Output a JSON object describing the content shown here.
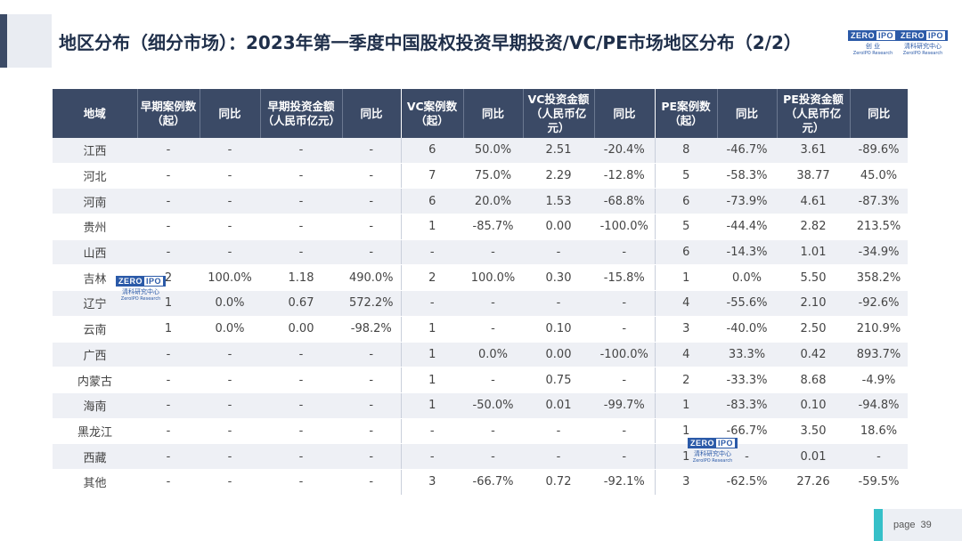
{
  "title": "地区分布（细分市场）：2023年第一季度中国股权投资早期投资/VC/PE市场地区分布（2/2）",
  "logo": {
    "box_main": "ZERO",
    "box_tail": "IPO",
    "sub": "清科研究中心",
    "sub_en": "ZeroIPO Research",
    "sub_b": "创 业"
  },
  "table": {
    "headers": [
      "地域",
      "早期案例数（起）",
      "同比",
      "早期投资金额（人民币亿元）",
      "同比",
      "VC案例数（起）",
      "同比",
      "VC投资金额（人民币亿元）",
      "同比",
      "PE案例数（起）",
      "同比",
      "PE投资金额（人民币亿元）",
      "同比"
    ],
    "rows": [
      [
        "江西",
        "-",
        "-",
        "-",
        "-",
        "6",
        "50.0%",
        "2.51",
        "-20.4%",
        "8",
        "-46.7%",
        "3.61",
        "-89.6%"
      ],
      [
        "河北",
        "-",
        "-",
        "-",
        "-",
        "7",
        "75.0%",
        "2.29",
        "-12.8%",
        "5",
        "-58.3%",
        "38.77",
        "45.0%"
      ],
      [
        "河南",
        "-",
        "-",
        "-",
        "-",
        "6",
        "20.0%",
        "1.53",
        "-68.8%",
        "6",
        "-73.9%",
        "4.61",
        "-87.3%"
      ],
      [
        "贵州",
        "-",
        "-",
        "-",
        "-",
        "1",
        "-85.7%",
        "0.00",
        "-100.0%",
        "5",
        "-44.4%",
        "2.82",
        "213.5%"
      ],
      [
        "山西",
        "-",
        "-",
        "-",
        "-",
        "-",
        "-",
        "-",
        "-",
        "6",
        "-14.3%",
        "1.01",
        "-34.9%"
      ],
      [
        "吉林",
        "2",
        "100.0%",
        "1.18",
        "490.0%",
        "2",
        "100.0%",
        "0.30",
        "-15.8%",
        "1",
        "0.0%",
        "5.50",
        "358.2%"
      ],
      [
        "辽宁",
        "1",
        "0.0%",
        "0.67",
        "572.2%",
        "-",
        "-",
        "-",
        "-",
        "4",
        "-55.6%",
        "2.10",
        "-92.6%"
      ],
      [
        "云南",
        "1",
        "0.0%",
        "0.00",
        "-98.2%",
        "1",
        "-",
        "0.10",
        "-",
        "3",
        "-40.0%",
        "2.50",
        "210.9%"
      ],
      [
        "广西",
        "-",
        "-",
        "-",
        "-",
        "1",
        "0.0%",
        "0.00",
        "-100.0%",
        "4",
        "33.3%",
        "0.42",
        "893.7%"
      ],
      [
        "内蒙古",
        "-",
        "-",
        "-",
        "-",
        "1",
        "-",
        "0.75",
        "-",
        "2",
        "-33.3%",
        "8.68",
        "-4.9%"
      ],
      [
        "海南",
        "-",
        "-",
        "-",
        "-",
        "1",
        "-50.0%",
        "0.01",
        "-99.7%",
        "1",
        "-83.3%",
        "0.10",
        "-94.8%"
      ],
      [
        "黑龙江",
        "-",
        "-",
        "-",
        "-",
        "-",
        "-",
        "-",
        "-",
        "1",
        "-66.7%",
        "3.50",
        "18.6%"
      ],
      [
        "西藏",
        "-",
        "-",
        "-",
        "-",
        "-",
        "-",
        "-",
        "-",
        "1",
        "-",
        "0.01",
        "-"
      ],
      [
        "其他",
        "-",
        "-",
        "-",
        "-",
        "3",
        "-66.7%",
        "0.72",
        "-92.1%",
        "3",
        "-62.5%",
        "27.26",
        "-59.5%"
      ]
    ]
  },
  "footer": {
    "page_label": "page",
    "page_number": "39"
  },
  "colors": {
    "header_bg": "#3b4a66",
    "stripe": "#eef0f5",
    "accent": "#36c0c8"
  }
}
